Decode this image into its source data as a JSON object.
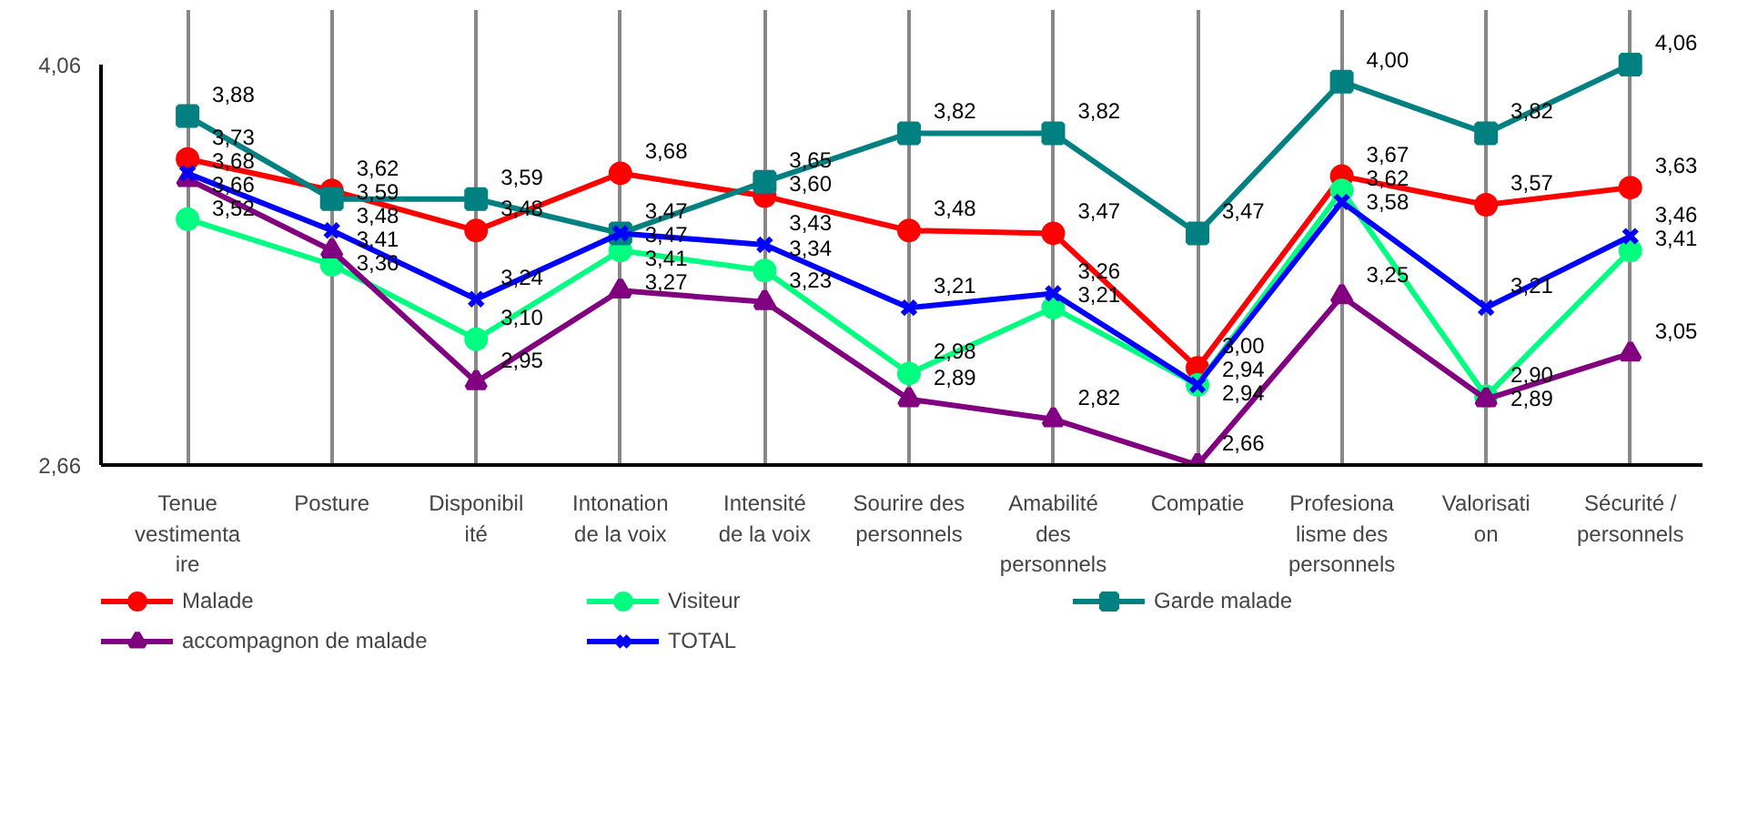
{
  "chart_data": {
    "type": "line",
    "categories": [
      "Tenue vestimentaire",
      "Posture",
      "Disponibilité",
      "Intonation de la voix",
      "Intensité de la voix",
      "Sourire des personnels",
      "Amabilité des personnels",
      "Compatie",
      "Profesionalisme des personnels",
      "Valorisation",
      "Sécurité / personnels"
    ],
    "series": [
      {
        "name": "Malade",
        "color": "#ff0000",
        "marker": "circle",
        "values": [
          3.73,
          3.62,
          3.48,
          3.68,
          3.6,
          3.48,
          3.47,
          3.0,
          3.67,
          3.57,
          3.63
        ],
        "value_labels": [
          "3,73",
          "3,62",
          "3,48",
          "3,68",
          "3,60",
          "3,48",
          "3,47",
          "3,00",
          "3,67",
          "3,57",
          "3,63"
        ]
      },
      {
        "name": "Visiteur",
        "color": "#00ff80",
        "marker": "circle",
        "values": [
          3.52,
          3.36,
          3.1,
          3.41,
          3.34,
          2.98,
          3.21,
          2.94,
          3.62,
          2.9,
          3.41
        ],
        "value_labels": [
          "3,52",
          "3,36",
          "3,10",
          "3,41",
          "3,34",
          "2,98",
          "3,21",
          "2,94",
          "3,62",
          "2,90",
          "3,41"
        ]
      },
      {
        "name": "Garde malade",
        "color": "#008080",
        "marker": "square",
        "values": [
          3.88,
          3.59,
          3.59,
          3.47,
          3.65,
          3.82,
          3.82,
          3.47,
          4.0,
          3.82,
          4.06
        ],
        "value_labels": [
          "3,88",
          "3,59",
          "3,59",
          "3,47",
          "3,65",
          "3,82",
          "3,82",
          "3,47",
          "4,00",
          "3,82",
          "4,06"
        ]
      },
      {
        "name": "accompagnon de malade",
        "color": "#800080",
        "marker": "triangle",
        "values": [
          3.66,
          3.41,
          2.95,
          3.27,
          3.23,
          2.89,
          2.82,
          2.66,
          3.25,
          2.89,
          3.05
        ],
        "value_labels": [
          "3,66",
          "3,41",
          "2,95",
          "3,27",
          "3,23",
          "2,89",
          "2,82",
          "2,66",
          "3,25",
          "2,89",
          "3,05"
        ]
      },
      {
        "name": "TOTAL",
        "color": "#0000ff",
        "marker": "cross",
        "values": [
          3.68,
          3.48,
          3.24,
          3.47,
          3.43,
          3.21,
          3.26,
          2.94,
          3.58,
          3.21,
          3.46
        ],
        "value_labels": [
          "3,68",
          "3,48",
          "3,24",
          "3,47",
          "3,43",
          "3,21",
          "3,26",
          "2,94",
          "3,58",
          "3,21",
          "3,46"
        ]
      }
    ],
    "ylim": [
      2.66,
      4.06
    ],
    "yticks": [
      {
        "value": 2.66,
        "label": "2,66"
      },
      {
        "value": 4.06,
        "label": "4,06"
      }
    ],
    "grid": "x",
    "legend": "bottom"
  }
}
